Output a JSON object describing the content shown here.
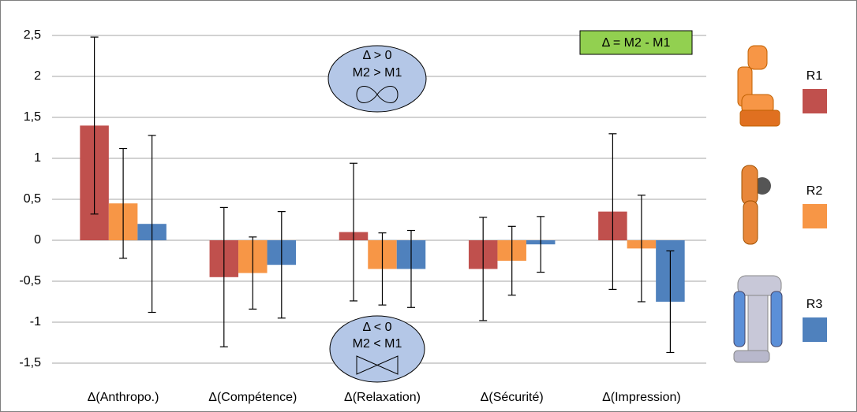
{
  "chart_data": {
    "type": "bar",
    "categories": [
      "Δ(Anthropo.)",
      "Δ(Compétence)",
      "Δ(Relaxation)",
      "Δ(Sécurité)",
      "Δ(Impression)"
    ],
    "series": [
      {
        "name": "R1",
        "color": "#c0504d",
        "values": [
          1.4,
          -0.45,
          0.1,
          -0.35,
          0.35
        ],
        "errors": [
          1.08,
          0.85,
          0.84,
          0.63,
          0.95
        ]
      },
      {
        "name": "R2",
        "color": "#f79646",
        "values": [
          0.45,
          -0.4,
          -0.35,
          -0.25,
          -0.1
        ],
        "errors": [
          0.67,
          0.44,
          0.44,
          0.42,
          0.65
        ]
      },
      {
        "name": "R3",
        "color": "#4f81bd",
        "values": [
          0.2,
          -0.3,
          -0.35,
          -0.05,
          -0.75
        ],
        "errors": [
          1.08,
          0.65,
          0.47,
          0.34,
          0.62
        ]
      }
    ],
    "ylim": [
      -1.5,
      2.5
    ],
    "yticks": [
      {
        "value": -1.5,
        "label": "-1,5"
      },
      {
        "value": -1,
        "label": "-1"
      },
      {
        "value": -0.5,
        "label": "-0,5"
      },
      0,
      {
        "value": 0.5,
        "label": "0,5"
      },
      1,
      {
        "value": 1.5,
        "label": "1,5"
      },
      2,
      {
        "value": 2.5,
        "label": "2,5"
      }
    ],
    "grid": true,
    "annotations": {
      "definition": "Δ = M2 - M1",
      "positive": [
        "Δ > 0",
        "M2 > M1"
      ],
      "negative": [
        "Δ < 0",
        "M2 < M1"
      ]
    }
  }
}
